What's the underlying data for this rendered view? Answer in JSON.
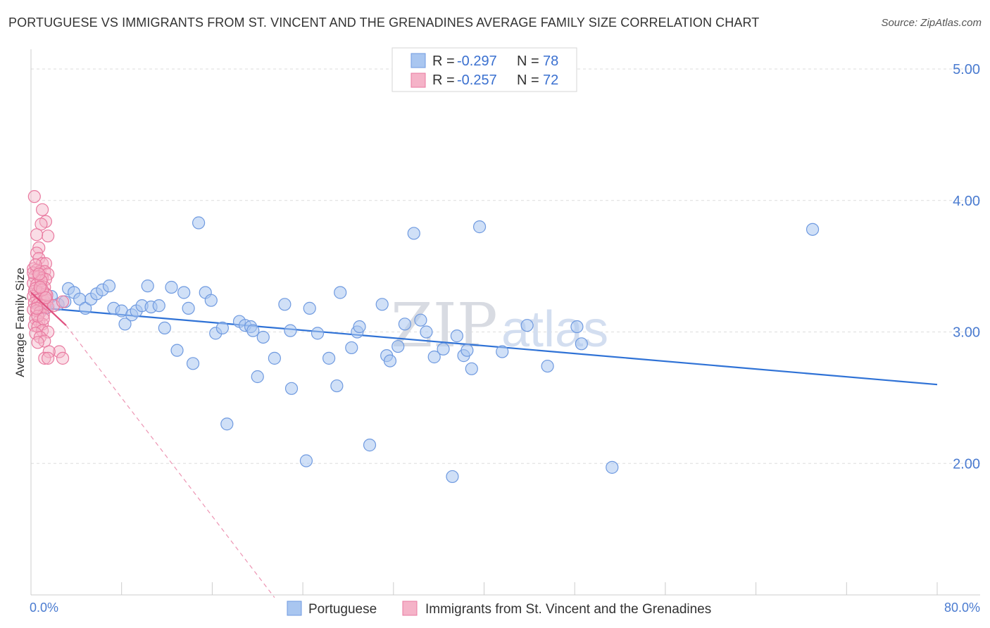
{
  "title": "PORTUGUESE VS IMMIGRANTS FROM ST. VINCENT AND THE GRENADINES AVERAGE FAMILY SIZE CORRELATION CHART",
  "source": "Source: ZipAtlas.com",
  "watermark": {
    "zip": "ZIP",
    "atlas": "atlas"
  },
  "colors": {
    "blue_fill": "#a9c6f0",
    "blue_stroke": "#6f9ae0",
    "blue_line": "#2f72d6",
    "pink_fill": "#f5b3c8",
    "pink_stroke": "#e97aa0",
    "pink_line": "#e0507f",
    "grid": "#dddddd",
    "tick_text": "#4a7bd0"
  },
  "legend": {
    "rows": [
      {
        "r_label": "R = ",
        "r_value": "-0.297",
        "n_label": "N = ",
        "n_value": "78"
      },
      {
        "r_label": "R = ",
        "r_value": "-0.257",
        "n_label": "N = ",
        "n_value": "72"
      }
    ]
  },
  "chart_data": {
    "type": "scatter",
    "title": "PORTUGUESE VS IMMIGRANTS FROM ST. VINCENT AND THE GRENADINES AVERAGE FAMILY SIZE CORRELATION CHART",
    "xlabel": "",
    "ylabel": "Average Family Size",
    "xlim": [
      0,
      80
    ],
    "ylim": [
      1.0,
      5.15
    ],
    "x_tick_labels": [
      "0.0%",
      "80.0%"
    ],
    "y_ticks": [
      2.0,
      3.0,
      4.0,
      5.0
    ],
    "y_tick_labels": [
      "2.00",
      "3.00",
      "4.00",
      "5.00"
    ],
    "grid": true,
    "legend_position": "top-center",
    "series": [
      {
        "name": "Portuguese",
        "color": "#a9c6f0",
        "trend": {
          "x": [
            0.0,
            80.0
          ],
          "y": [
            3.19,
            2.6
          ]
        },
        "points": [
          [
            1.0,
            3.2
          ],
          [
            1.3,
            3.18
          ],
          [
            1.8,
            3.27
          ],
          [
            2.4,
            3.21
          ],
          [
            3.3,
            3.33
          ],
          [
            3.8,
            3.3
          ],
          [
            4.3,
            3.25
          ],
          [
            4.8,
            3.18
          ],
          [
            5.3,
            3.25
          ],
          [
            5.8,
            3.29
          ],
          [
            6.3,
            3.32
          ],
          [
            6.9,
            3.35
          ],
          [
            7.3,
            3.18
          ],
          [
            8.0,
            3.16
          ],
          [
            8.3,
            3.06
          ],
          [
            8.9,
            3.13
          ],
          [
            9.3,
            3.16
          ],
          [
            9.8,
            3.2
          ],
          [
            10.3,
            3.35
          ],
          [
            10.6,
            3.19
          ],
          [
            11.3,
            3.2
          ],
          [
            11.8,
            3.03
          ],
          [
            12.4,
            3.34
          ],
          [
            12.9,
            2.86
          ],
          [
            13.5,
            3.3
          ],
          [
            13.9,
            3.18
          ],
          [
            14.3,
            2.76
          ],
          [
            14.8,
            3.83
          ],
          [
            15.4,
            3.3
          ],
          [
            15.9,
            3.24
          ],
          [
            16.3,
            2.99
          ],
          [
            16.9,
            3.03
          ],
          [
            17.3,
            2.3
          ],
          [
            18.4,
            3.08
          ],
          [
            18.9,
            3.05
          ],
          [
            19.4,
            3.04
          ],
          [
            19.6,
            3.01
          ],
          [
            20.0,
            2.66
          ],
          [
            20.5,
            2.96
          ],
          [
            21.5,
            2.8
          ],
          [
            22.4,
            3.21
          ],
          [
            22.9,
            3.01
          ],
          [
            23.0,
            2.57
          ],
          [
            24.3,
            2.02
          ],
          [
            24.6,
            3.18
          ],
          [
            25.3,
            2.99
          ],
          [
            26.3,
            2.8
          ],
          [
            27.0,
            2.59
          ],
          [
            27.3,
            3.3
          ],
          [
            28.3,
            2.88
          ],
          [
            28.8,
            3.0
          ],
          [
            29.0,
            3.04
          ],
          [
            29.9,
            2.14
          ],
          [
            31.0,
            3.21
          ],
          [
            31.4,
            2.82
          ],
          [
            31.7,
            2.78
          ],
          [
            32.4,
            2.89
          ],
          [
            33.0,
            3.06
          ],
          [
            33.8,
            3.75
          ],
          [
            34.4,
            3.09
          ],
          [
            34.9,
            3.0
          ],
          [
            35.6,
            2.81
          ],
          [
            36.4,
            2.87
          ],
          [
            37.2,
            1.9
          ],
          [
            37.6,
            2.97
          ],
          [
            38.2,
            2.82
          ],
          [
            38.5,
            2.86
          ],
          [
            38.9,
            2.72
          ],
          [
            39.6,
            3.8
          ],
          [
            41.6,
            2.85
          ],
          [
            43.8,
            3.05
          ],
          [
            45.6,
            2.74
          ],
          [
            48.2,
            3.04
          ],
          [
            48.6,
            2.91
          ],
          [
            51.3,
            1.97
          ],
          [
            69.0,
            3.78
          ],
          [
            1.2,
            3.22
          ],
          [
            3.0,
            3.23
          ]
        ]
      },
      {
        "name": "Immigrants from St. Vincent and the Grenadines",
        "color": "#f5b3c8",
        "trend": {
          "x": [
            0.0,
            3.1
          ],
          "y": [
            3.3,
            3.05
          ]
        },
        "trend_extended": {
          "x": [
            3.1,
            21.5
          ],
          "y": [
            3.05,
            0.98
          ]
        },
        "points": [
          [
            0.3,
            4.03
          ],
          [
            1.0,
            3.93
          ],
          [
            1.3,
            3.84
          ],
          [
            0.9,
            3.82
          ],
          [
            1.5,
            3.73
          ],
          [
            0.5,
            3.74
          ],
          [
            0.7,
            3.64
          ],
          [
            0.5,
            3.6
          ],
          [
            0.7,
            3.56
          ],
          [
            1.0,
            3.52
          ],
          [
            1.3,
            3.52
          ],
          [
            0.2,
            3.48
          ],
          [
            0.5,
            3.47
          ],
          [
            0.8,
            3.46
          ],
          [
            1.2,
            3.46
          ],
          [
            1.5,
            3.44
          ],
          [
            0.3,
            3.42
          ],
          [
            0.7,
            3.42
          ],
          [
            1.0,
            3.41
          ],
          [
            1.3,
            3.4
          ],
          [
            0.2,
            3.37
          ],
          [
            0.5,
            3.36
          ],
          [
            0.9,
            3.35
          ],
          [
            1.2,
            3.34
          ],
          [
            0.3,
            3.31
          ],
          [
            0.6,
            3.3
          ],
          [
            0.9,
            3.29
          ],
          [
            1.3,
            3.29
          ],
          [
            0.2,
            3.27
          ],
          [
            0.5,
            3.26
          ],
          [
            0.8,
            3.25
          ],
          [
            1.1,
            3.24
          ],
          [
            1.4,
            3.24
          ],
          [
            0.3,
            3.22
          ],
          [
            0.6,
            3.21
          ],
          [
            0.9,
            3.2
          ],
          [
            1.2,
            3.2
          ],
          [
            1.5,
            3.19
          ],
          [
            0.2,
            3.17
          ],
          [
            0.5,
            3.16
          ],
          [
            0.8,
            3.15
          ],
          [
            1.1,
            3.13
          ],
          [
            0.4,
            3.1
          ],
          [
            0.7,
            3.08
          ],
          [
            1.0,
            3.06
          ],
          [
            0.3,
            3.05
          ],
          [
            0.6,
            3.04
          ],
          [
            1.0,
            3.01
          ],
          [
            1.5,
            3.0
          ],
          [
            0.4,
            2.99
          ],
          [
            0.8,
            2.96
          ],
          [
            1.2,
            2.93
          ],
          [
            0.6,
            2.92
          ],
          [
            2.5,
            2.85
          ],
          [
            1.6,
            2.85
          ],
          [
            1.2,
            2.8
          ],
          [
            1.5,
            2.8
          ],
          [
            2.8,
            2.8
          ],
          [
            0.4,
            3.33
          ],
          [
            0.9,
            3.39
          ],
          [
            1.4,
            3.28
          ],
          [
            0.6,
            3.12
          ],
          [
            1.1,
            3.1
          ],
          [
            2.0,
            3.2
          ],
          [
            2.8,
            3.23
          ],
          [
            0.2,
            3.45
          ],
          [
            0.4,
            3.51
          ],
          [
            0.7,
            3.44
          ],
          [
            1.0,
            3.32
          ],
          [
            1.3,
            3.26
          ],
          [
            0.5,
            3.18
          ],
          [
            0.8,
            3.34
          ]
        ]
      }
    ]
  }
}
